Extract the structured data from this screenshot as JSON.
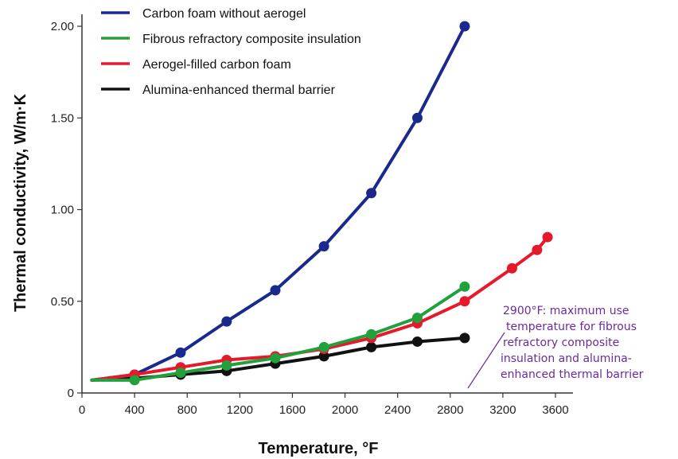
{
  "chart_data": {
    "type": "line",
    "title": "",
    "xlabel": "Temperature, °F",
    "ylabel": "Thermal conductivity, W/m·K",
    "xlim": [
      0,
      3700
    ],
    "ylim": [
      0,
      2.05
    ],
    "x_ticks": [
      0,
      400,
      800,
      1200,
      1600,
      2000,
      2400,
      2800,
      3200,
      3600
    ],
    "x_tick_labels": [
      "0",
      "400",
      "800",
      "1200",
      "1600",
      "2000",
      "2400",
      "2800",
      "3200",
      "3600"
    ],
    "y_ticks": [
      0,
      0.5,
      1.0,
      1.5,
      2.0
    ],
    "y_tick_labels": [
      "0",
      "0.50",
      "1.00",
      "1.50",
      "2.00"
    ],
    "grid": false,
    "legend_position": "top-left",
    "series": [
      {
        "name": "Carbon foam without aerogel",
        "color": "#1a2a8c",
        "line_start": {
          "x": 75,
          "y": 0.07
        },
        "x": [
          400,
          750,
          1100,
          1470,
          1840,
          2200,
          2550,
          2910
        ],
        "y": [
          0.1,
          0.22,
          0.39,
          0.56,
          0.8,
          1.09,
          1.5,
          2.0
        ]
      },
      {
        "name": "Fibrous refractory composite insulation",
        "color": "#22a03c",
        "line_start": {
          "x": 75,
          "y": 0.07
        },
        "x": [
          400,
          750,
          1100,
          1470,
          1840,
          2200,
          2550,
          2910
        ],
        "y": [
          0.07,
          0.11,
          0.15,
          0.19,
          0.25,
          0.32,
          0.41,
          0.58
        ]
      },
      {
        "name": "Aerogel-filled carbon foam",
        "color": "#e5192b",
        "line_start": {
          "x": 75,
          "y": 0.07
        },
        "x": [
          400,
          750,
          1100,
          1470,
          1840,
          2200,
          2550,
          2910,
          3270,
          3460,
          3540
        ],
        "y": [
          0.1,
          0.14,
          0.18,
          0.2,
          0.24,
          0.3,
          0.38,
          0.5,
          0.68,
          0.78,
          0.85
        ]
      },
      {
        "name": "Alumina-enhanced thermal barrier",
        "color": "#111111",
        "line_start": {
          "x": 75,
          "y": 0.07
        },
        "x": [
          400,
          750,
          1100,
          1470,
          1840,
          2200,
          2550,
          2910
        ],
        "y": [
          0.08,
          0.1,
          0.12,
          0.16,
          0.2,
          0.25,
          0.28,
          0.3
        ]
      }
    ],
    "annotation": {
      "lines": [
        "2900°F: maximum use",
        "temperature for fibrous",
        "refractory composite",
        "insulation and alumina-",
        "enhanced thermal barrier"
      ],
      "color": "#6b2a9e"
    }
  }
}
